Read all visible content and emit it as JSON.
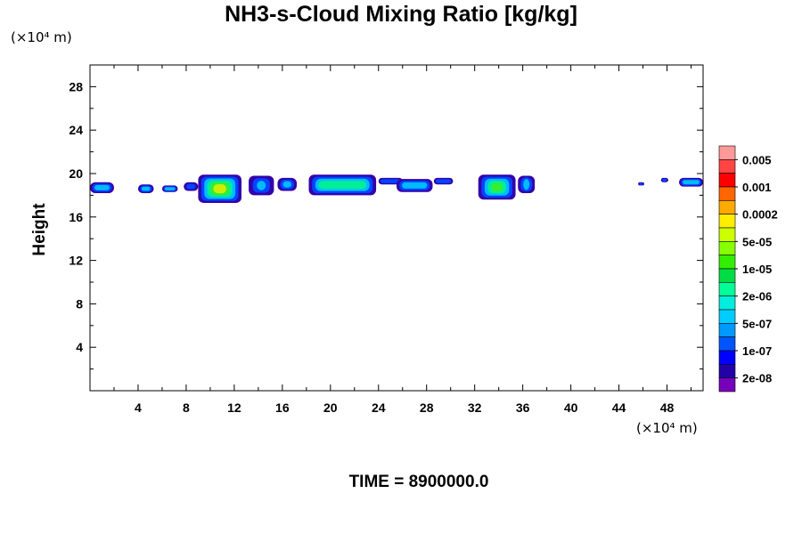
{
  "chart_data": {
    "type": "heatmap",
    "title": "NH3-s-Cloud Mixing Ratio [kg/kg]",
    "ylabel": "Height",
    "y_unit": "(×10⁴ m)",
    "x_unit": "(×10⁴ m)",
    "footer": "TIME = 8900000.0",
    "xlim": [
      0,
      51
    ],
    "ylim": [
      0,
      30
    ],
    "xticks": [
      4,
      8,
      12,
      16,
      20,
      24,
      28,
      32,
      36,
      40,
      44,
      48
    ],
    "yticks": [
      4,
      8,
      12,
      16,
      20,
      24,
      28
    ],
    "colorbar": {
      "labels": [
        "0.005",
        "0.001",
        "0.0002",
        "5e-05",
        "1e-05",
        "2e-06",
        "5e-07",
        "1e-07",
        "2e-08"
      ],
      "colors": [
        "#ff9999",
        "#ff4444",
        "#ff0000",
        "#ff6600",
        "#ffaa00",
        "#ffee00",
        "#ccff00",
        "#88ff00",
        "#33ee00",
        "#00dd44",
        "#00ff99",
        "#00eedd",
        "#00ccff",
        "#0099ff",
        "#0055ff",
        "#0000ff",
        "#2200aa",
        "#7700bb"
      ]
    },
    "regions": [
      {
        "x0": 0.0,
        "x1": 2.0,
        "y0": 18.2,
        "y1": 19.2,
        "level": 2
      },
      {
        "x0": 4.0,
        "x1": 5.3,
        "y0": 18.2,
        "y1": 19.0,
        "level": 2
      },
      {
        "x0": 6.0,
        "x1": 7.3,
        "y0": 18.3,
        "y1": 18.9,
        "level": 2
      },
      {
        "x0": 7.8,
        "x1": 9.0,
        "y0": 18.4,
        "y1": 19.2,
        "level": 1
      },
      {
        "x0": 9.0,
        "x1": 12.6,
        "y0": 17.3,
        "y1": 19.9,
        "level": 5
      },
      {
        "x0": 13.2,
        "x1": 15.3,
        "y0": 18.0,
        "y1": 19.8,
        "level": 2
      },
      {
        "x0": 15.6,
        "x1": 17.2,
        "y0": 18.4,
        "y1": 19.6,
        "level": 2
      },
      {
        "x0": 18.2,
        "x1": 23.8,
        "y0": 18.0,
        "y1": 19.9,
        "level": 3
      },
      {
        "x0": 24.0,
        "x1": 26.0,
        "y0": 19.0,
        "y1": 19.6,
        "level": 1
      },
      {
        "x0": 25.5,
        "x1": 28.5,
        "y0": 18.3,
        "y1": 19.5,
        "level": 2
      },
      {
        "x0": 28.6,
        "x1": 30.2,
        "y0": 19.0,
        "y1": 19.6,
        "level": 1
      },
      {
        "x0": 32.3,
        "x1": 35.4,
        "y0": 17.6,
        "y1": 19.9,
        "level": 4
      },
      {
        "x0": 35.6,
        "x1": 37.0,
        "y0": 18.2,
        "y1": 19.8,
        "level": 3
      },
      {
        "x0": 45.6,
        "x1": 46.1,
        "y0": 18.9,
        "y1": 19.2,
        "level": 1
      },
      {
        "x0": 47.5,
        "x1": 48.1,
        "y0": 19.2,
        "y1": 19.6,
        "level": 1
      },
      {
        "x0": 49.0,
        "x1": 51.0,
        "y0": 18.8,
        "y1": 19.6,
        "level": 2
      }
    ]
  }
}
